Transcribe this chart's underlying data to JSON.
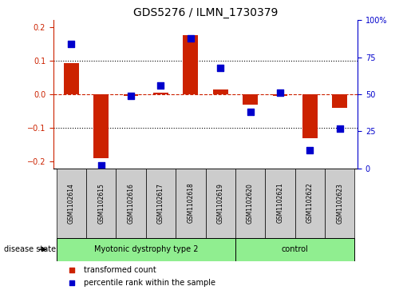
{
  "title": "GDS5276 / ILMN_1730379",
  "samples": [
    "GSM1102614",
    "GSM1102615",
    "GSM1102616",
    "GSM1102617",
    "GSM1102618",
    "GSM1102619",
    "GSM1102620",
    "GSM1102621",
    "GSM1102622",
    "GSM1102623"
  ],
  "red_values": [
    0.093,
    -0.19,
    -0.005,
    0.005,
    0.175,
    0.015,
    -0.03,
    -0.005,
    -0.13,
    -0.04
  ],
  "blue_values": [
    0.84,
    0.02,
    0.49,
    0.56,
    0.88,
    0.68,
    0.38,
    0.51,
    0.12,
    0.27
  ],
  "groups": [
    {
      "label": "Myotonic dystrophy type 2",
      "start": 0,
      "end": 5,
      "color": "#90EE90"
    },
    {
      "label": "control",
      "start": 6,
      "end": 9,
      "color": "#90EE90"
    }
  ],
  "ylim_left": [
    -0.22,
    0.22
  ],
  "ylim_right": [
    0.0,
    1.0
  ],
  "yticks_left": [
    -0.2,
    -0.1,
    0.0,
    0.1,
    0.2
  ],
  "yticks_right": [
    0.0,
    0.25,
    0.5,
    0.75,
    1.0
  ],
  "ytick_labels_right": [
    "0",
    "25",
    "50",
    "75",
    "100%"
  ],
  "hline_red": 0.0,
  "hlines_black": [
    -0.1,
    0.1
  ],
  "bar_width": 0.5,
  "blue_marker_size": 28,
  "red_color": "#CC2200",
  "blue_color": "#0000CC",
  "label_box_color": "#CCCCCC",
  "disease_state_label": "disease state",
  "legend_red": "transformed count",
  "legend_blue": "percentile rank within the sample",
  "n_samples": 10,
  "n_group1": 6,
  "n_group2": 4
}
